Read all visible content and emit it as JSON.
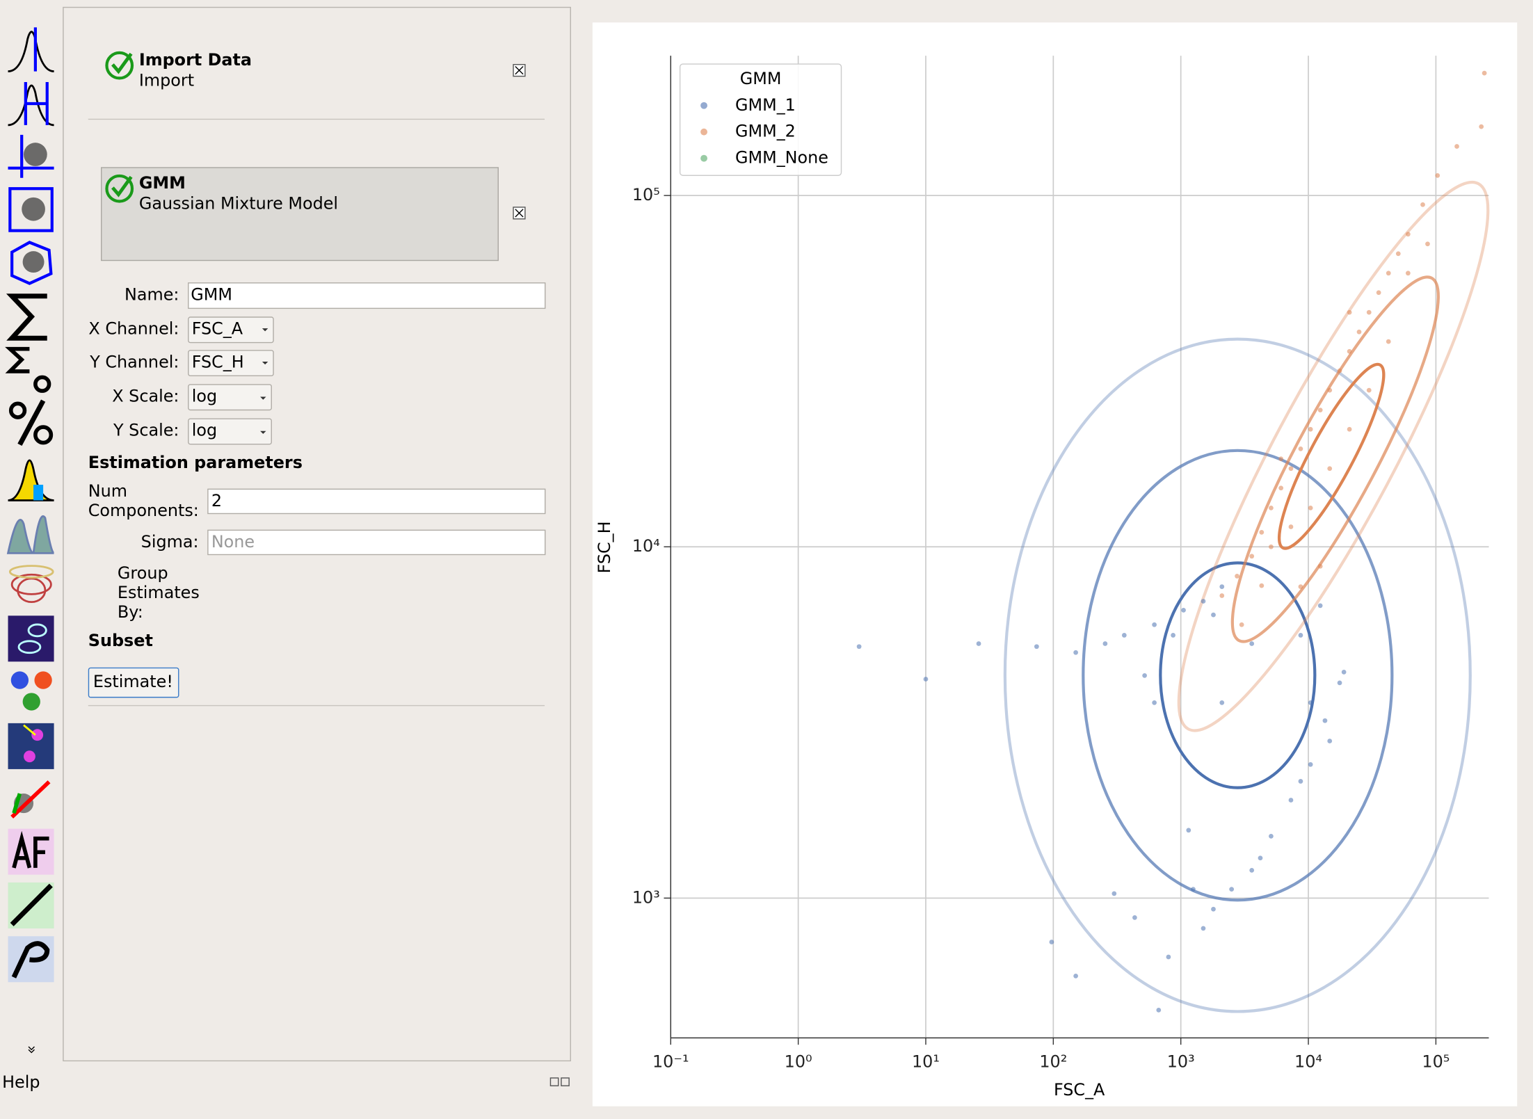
{
  "toolbar": {
    "help": "Help"
  },
  "workflow": {
    "steps": [
      {
        "title": "Import Data",
        "subtitle": "Import"
      },
      {
        "title": "GMM",
        "subtitle": "Gaussian Mixture Model"
      }
    ]
  },
  "form": {
    "fields": [
      {
        "label": "Name:",
        "value": "GMM"
      },
      {
        "label": "X Channel:",
        "value": "FSC_A"
      },
      {
        "label": "Y Channel:",
        "value": "FSC_H"
      },
      {
        "label": "X Scale:",
        "value": "log"
      },
      {
        "label": "Y Scale:",
        "value": "log"
      }
    ],
    "estimation_heading": "Estimation parameters",
    "num_components": {
      "label_lines": [
        "Num",
        "Components:"
      ],
      "value": 2
    },
    "sigma": {
      "label": "Sigma:",
      "placeholder": "None"
    },
    "group_estimates": {
      "label_lines": [
        "Group",
        "Estimates",
        "By:"
      ]
    },
    "subset_heading": "Subset",
    "button": "Estimate!"
  },
  "chart_data": {
    "type": "scatter",
    "x_label": "FSC_A",
    "y_label": "FSC_H",
    "xscale": "log",
    "yscale": "log",
    "grid": true,
    "legend_title": "GMM",
    "legend_loc": "upper left",
    "xlim": [
      0.1,
      260000
    ],
    "ylim": [
      400,
      250000
    ],
    "xticks": [
      {
        "value": 0.1,
        "label": "10⁻¹"
      },
      {
        "value": 1,
        "label": "10⁰"
      },
      {
        "value": 10,
        "label": "10¹"
      },
      {
        "value": 100,
        "label": "10²"
      },
      {
        "value": 1000,
        "label": "10³"
      },
      {
        "value": 10000,
        "label": "10⁴"
      },
      {
        "value": 100000,
        "label": "10⁵"
      }
    ],
    "yticks": [
      {
        "value": 1000,
        "label": "10³"
      },
      {
        "value": 10000,
        "label": "10⁴"
      },
      {
        "value": 100000,
        "label": "10⁵"
      }
    ],
    "series": [
      {
        "name": "GMM_1",
        "color": "#4c72b0",
        "x": [
          3,
          10,
          26,
          74,
          150,
          360,
          620,
          1050,
          1500,
          2100,
          1800,
          870,
          255,
          520,
          17600,
          13500,
          10400,
          7300,
          5100,
          3600,
          2500,
          1800,
          1500,
          1250,
          4200,
          8700,
          14700,
          19000,
          10400,
          97,
          150,
          670,
          300,
          800,
          1150,
          2100,
          8700,
          12400,
          3600,
          620,
          435
        ],
        "values": [
          5200,
          4200,
          5300,
          5200,
          5000,
          5600,
          6000,
          6600,
          7000,
          7700,
          6400,
          5600,
          5300,
          4300,
          4100,
          3200,
          2400,
          1900,
          1500,
          1200,
          1060,
          930,
          820,
          1060,
          1300,
          2150,
          2800,
          4400,
          3600,
          750,
          600,
          480,
          1030,
          680,
          1560,
          3600,
          5600,
          6800,
          5300,
          3600,
          880
        ]
      },
      {
        "name": "GMM_2",
        "color": "#dd8452",
        "x": [
          2100,
          2760,
          3600,
          4300,
          5100,
          6100,
          7300,
          8700,
          10400,
          12400,
          14700,
          17600,
          21000,
          25000,
          29900,
          35600,
          42500,
          50700,
          60500,
          78900,
          103000,
          146000,
          227000,
          240000,
          5100,
          7300,
          10400,
          14700,
          21000,
          6100,
          4300,
          3000,
          8700,
          12400,
          29900,
          42500,
          21000,
          60500,
          86100
        ],
        "values": [
          7260,
          8250,
          9400,
          11000,
          12900,
          14700,
          16700,
          19000,
          21600,
          24500,
          27900,
          31700,
          36000,
          40900,
          46500,
          52900,
          60100,
          68300,
          77600,
          94200,
          114000,
          138000,
          157000,
          223000,
          10000,
          11400,
          12900,
          16700,
          21600,
          17800,
          7750,
          6000,
          7700,
          8800,
          27900,
          38400,
          46500,
          60100,
          72800
        ]
      },
      {
        "name": "GMM_None",
        "color": "#55a868",
        "x": [],
        "values": []
      }
    ]
  }
}
